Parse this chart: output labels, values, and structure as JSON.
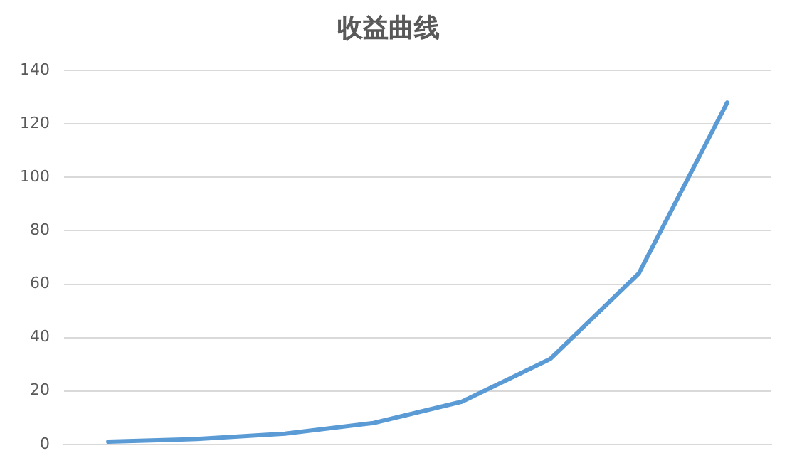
{
  "chart_data": {
    "type": "line",
    "title": "收益曲线",
    "categories": [
      null,
      null,
      null,
      null,
      null,
      null,
      null,
      null
    ],
    "series": [
      {
        "color": "#5b9bd5",
        "values": [
          1,
          2,
          4,
          8,
          16,
          32,
          64,
          128
        ]
      }
    ],
    "ylim": [
      0,
      140
    ],
    "yticks": [
      0,
      20,
      40,
      60,
      80,
      100,
      120,
      140
    ],
    "grid": "y",
    "legend": false,
    "marker": "none",
    "line_style": "solid",
    "tick_labels": "y"
  }
}
